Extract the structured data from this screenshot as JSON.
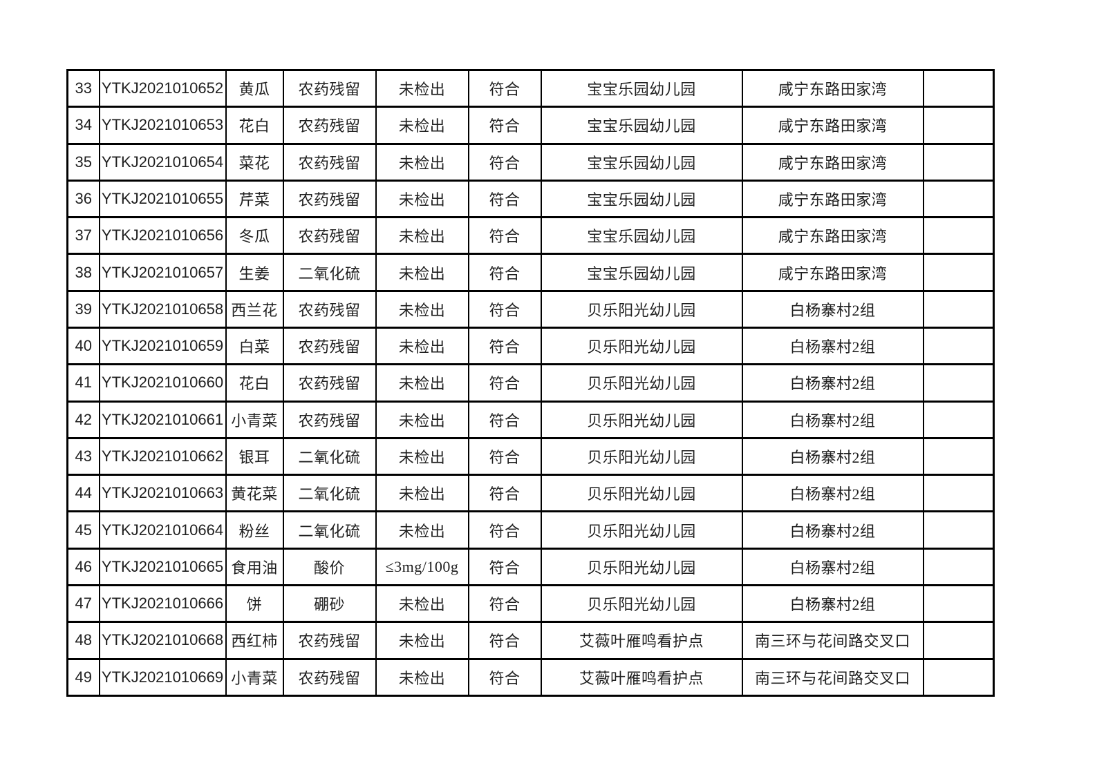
{
  "page": {
    "background_color": "#ffffff",
    "text_color": "#1f1f1f",
    "border_color": "#000000"
  },
  "table": {
    "visible_row_numbers": "33-49",
    "rows": [
      [
        "33",
        "YTKJ2021010652",
        "黄瓜",
        "农药残留",
        "未检出",
        "符合",
        "宝宝乐园幼儿园",
        "咸宁东路田家湾",
        ""
      ],
      [
        "34",
        "YTKJ2021010653",
        "花白",
        "农药残留",
        "未检出",
        "符合",
        "宝宝乐园幼儿园",
        "咸宁东路田家湾",
        ""
      ],
      [
        "35",
        "YTKJ2021010654",
        "菜花",
        "农药残留",
        "未检出",
        "符合",
        "宝宝乐园幼儿园",
        "咸宁东路田家湾",
        ""
      ],
      [
        "36",
        "YTKJ2021010655",
        "芹菜",
        "农药残留",
        "未检出",
        "符合",
        "宝宝乐园幼儿园",
        "咸宁东路田家湾",
        ""
      ],
      [
        "37",
        "YTKJ2021010656",
        "冬瓜",
        "农药残留",
        "未检出",
        "符合",
        "宝宝乐园幼儿园",
        "咸宁东路田家湾",
        ""
      ],
      [
        "38",
        "YTKJ2021010657",
        "生姜",
        "二氧化硫",
        "未检出",
        "符合",
        "宝宝乐园幼儿园",
        "咸宁东路田家湾",
        ""
      ],
      [
        "39",
        "YTKJ2021010658",
        "西兰花",
        "农药残留",
        "未检出",
        "符合",
        "贝乐阳光幼儿园",
        "白杨寨村2组",
        ""
      ],
      [
        "40",
        "YTKJ2021010659",
        "白菜",
        "农药残留",
        "未检出",
        "符合",
        "贝乐阳光幼儿园",
        "白杨寨村2组",
        ""
      ],
      [
        "41",
        "YTKJ2021010660",
        "花白",
        "农药残留",
        "未检出",
        "符合",
        "贝乐阳光幼儿园",
        "白杨寨村2组",
        ""
      ],
      [
        "42",
        "YTKJ2021010661",
        "小青菜",
        "农药残留",
        "未检出",
        "符合",
        "贝乐阳光幼儿园",
        "白杨寨村2组",
        ""
      ],
      [
        "43",
        "YTKJ2021010662",
        "银耳",
        "二氧化硫",
        "未检出",
        "符合",
        "贝乐阳光幼儿园",
        "白杨寨村2组",
        ""
      ],
      [
        "44",
        "YTKJ2021010663",
        "黄花菜",
        "二氧化硫",
        "未检出",
        "符合",
        "贝乐阳光幼儿园",
        "白杨寨村2组",
        ""
      ],
      [
        "45",
        "YTKJ2021010664",
        "粉丝",
        "二氧化硫",
        "未检出",
        "符合",
        "贝乐阳光幼儿园",
        "白杨寨村2组",
        ""
      ],
      [
        "46",
        "YTKJ2021010665",
        "食用油",
        "酸价",
        "≤3mg/100g",
        "符合",
        "贝乐阳光幼儿园",
        "白杨寨村2组",
        ""
      ],
      [
        "47",
        "YTKJ2021010666",
        "饼",
        "硼砂",
        "未检出",
        "符合",
        "贝乐阳光幼儿园",
        "白杨寨村2组",
        ""
      ],
      [
        "48",
        "YTKJ2021010668",
        "西红柿",
        "农药残留",
        "未检出",
        "符合",
        "艾薇叶雁鸣看护点",
        "南三环与花间路交叉口",
        ""
      ],
      [
        "49",
        "YTKJ2021010669",
        "小青菜",
        "农药残留",
        "未检出",
        "符合",
        "艾薇叶雁鸣看护点",
        "南三环与花间路交叉口",
        ""
      ]
    ]
  }
}
